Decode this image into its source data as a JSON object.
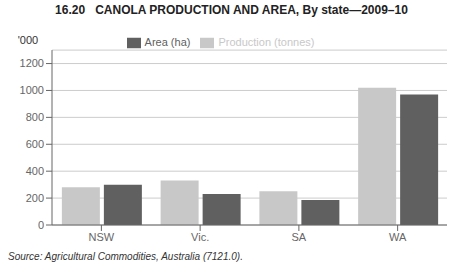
{
  "chart_data": {
    "type": "bar",
    "title": "16.20   CANOLA PRODUCTION AND AREA, By state—2009–10",
    "ylabel": "'000",
    "categories": [
      "NSW",
      "Vic.",
      "SA",
      "WA"
    ],
    "series": [
      {
        "name": "Production (tonnes)",
        "color": "#c8c8c8",
        "values": [
          280,
          330,
          250,
          1020
        ]
      },
      {
        "name": "Area (ha)",
        "color": "#606060",
        "values": [
          300,
          230,
          185,
          970
        ]
      }
    ],
    "ylim": [
      0,
      1300
    ],
    "yticks": [
      0,
      200,
      400,
      600,
      800,
      1000,
      1200
    ],
    "grid": true,
    "legend": "top",
    "annotations": [
      "Source: Agricultural Commodities, Australia (7121.0)."
    ]
  }
}
